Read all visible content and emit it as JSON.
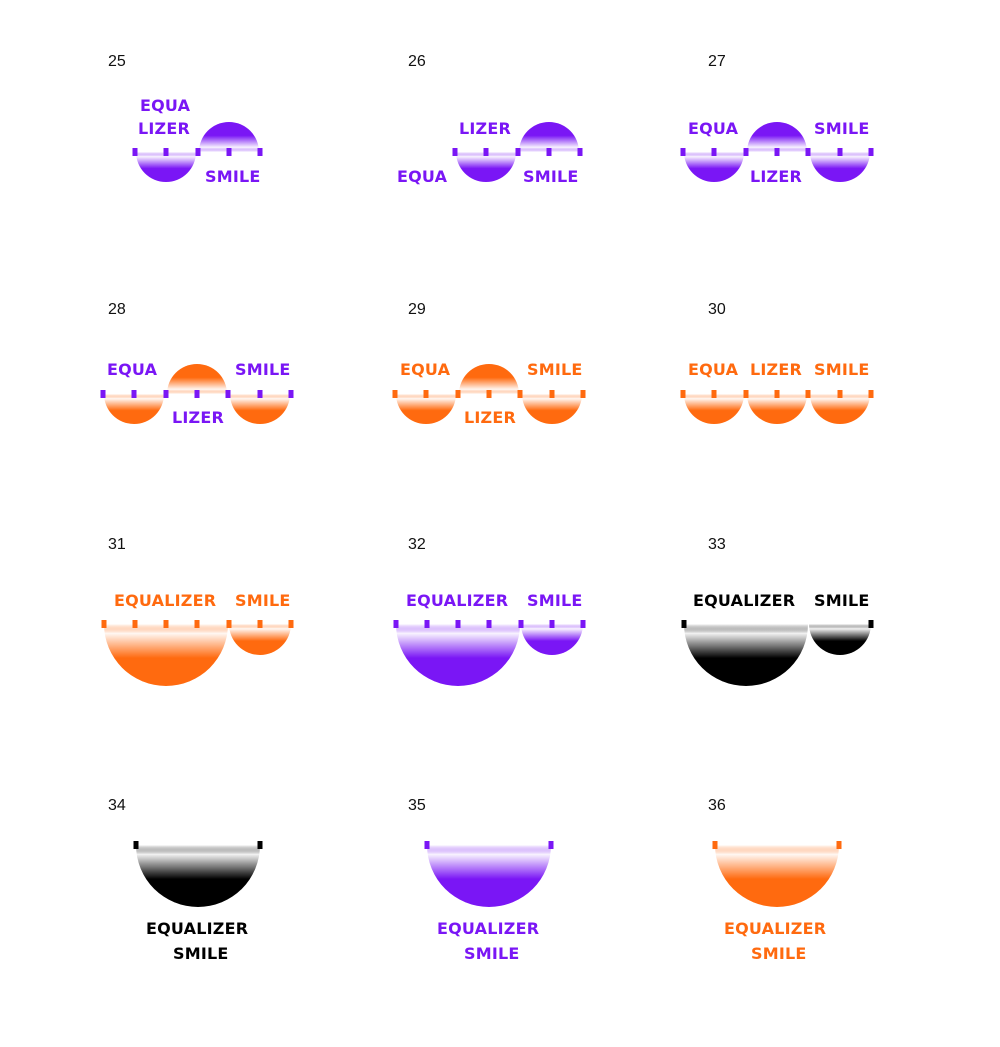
{
  "palette": {
    "purple": "#7a16f5",
    "orange": "#ff6a0f",
    "black": "#000000"
  },
  "variants": [
    {
      "number": "25",
      "color": "purple",
      "texts": [
        "EQUA",
        "LIZER",
        "SMILE"
      ]
    },
    {
      "number": "26",
      "color": "purple",
      "texts": [
        "LIZER",
        "EQUA",
        "SMILE"
      ]
    },
    {
      "number": "27",
      "color": "purple",
      "texts": [
        "EQUA",
        "SMILE",
        "LIZER"
      ]
    },
    {
      "number": "28",
      "color": "orange",
      "text_color": "purple",
      "texts": [
        "EQUA",
        "SMILE",
        "LIZER"
      ]
    },
    {
      "number": "29",
      "color": "orange",
      "texts": [
        "EQUA",
        "SMILE",
        "LIZER"
      ]
    },
    {
      "number": "30",
      "color": "orange",
      "texts": [
        "EQUA",
        "LIZER",
        "SMILE"
      ]
    },
    {
      "number": "31",
      "color": "orange",
      "texts": [
        "EQUALIZER",
        "SMILE"
      ]
    },
    {
      "number": "32",
      "color": "purple",
      "texts": [
        "EQUALIZER",
        "SMILE"
      ]
    },
    {
      "number": "33",
      "color": "black",
      "texts": [
        "EQUALIZER",
        "SMILE"
      ]
    },
    {
      "number": "34",
      "color": "black",
      "texts": [
        "EQUALIZER",
        "SMILE"
      ]
    },
    {
      "number": "35",
      "color": "purple",
      "texts": [
        "EQUALIZER",
        "SMILE"
      ]
    },
    {
      "number": "36",
      "color": "orange",
      "texts": [
        "EQUALIZER",
        "SMILE"
      ]
    }
  ]
}
